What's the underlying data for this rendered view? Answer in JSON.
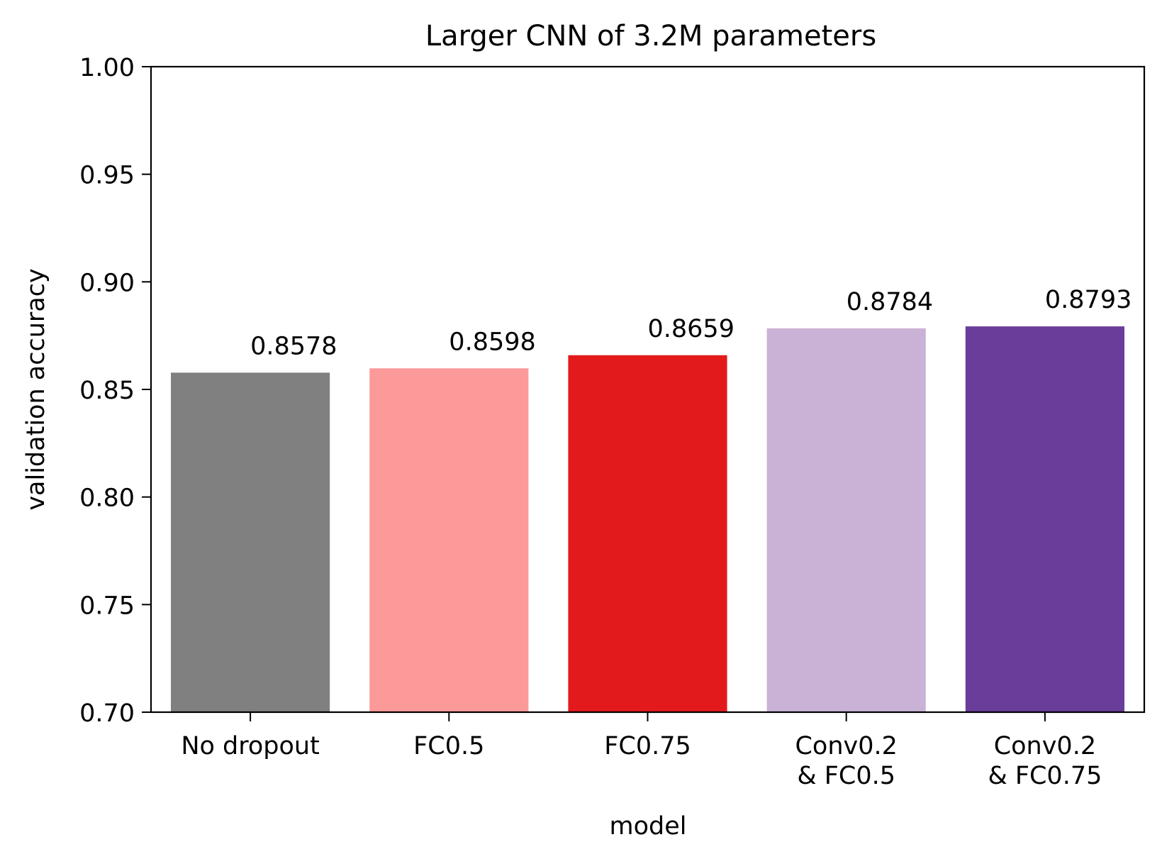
{
  "chart_data": {
    "type": "bar",
    "title": "Larger CNN of 3.2M parameters",
    "xlabel": "model",
    "ylabel": "validation accuracy",
    "ylim": [
      0.7,
      1.0
    ],
    "yticks": [
      "0.70",
      "0.75",
      "0.80",
      "0.85",
      "0.90",
      "0.95",
      "1.00"
    ],
    "grid": false,
    "legend": "none",
    "categories": [
      [
        "No dropout"
      ],
      [
        "FC0.5"
      ],
      [
        "FC0.75"
      ],
      [
        "Conv0.2",
        "& FC0.5"
      ],
      [
        "Conv0.2",
        "& FC0.75"
      ]
    ],
    "values": [
      0.8578,
      0.8598,
      0.8659,
      0.8784,
      0.8793
    ],
    "value_labels": [
      "0.8578",
      "0.8598",
      "0.8659",
      "0.8784",
      "0.8793"
    ],
    "colors": [
      "#808080",
      "#fb9a99",
      "#e31a1c",
      "#cab2d6",
      "#6a3d9a"
    ]
  }
}
